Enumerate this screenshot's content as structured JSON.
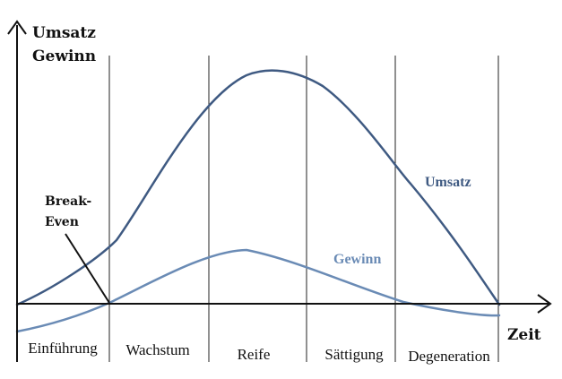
{
  "axes": {
    "y_title_line1": "Umsatz",
    "y_title_line2": "Gewinn",
    "x_title": "Zeit"
  },
  "phases": [
    "Einführung",
    "Wachstum",
    "Reife",
    "Sättigung",
    "Degeneration"
  ],
  "curves": {
    "umsatz": {
      "label": "Umsatz",
      "color": "#3f5a82"
    },
    "gewinn": {
      "label": "Gewinn",
      "color": "#6a8bb5"
    }
  },
  "break_even": {
    "line1": "Break-",
    "line2": "Even"
  }
}
